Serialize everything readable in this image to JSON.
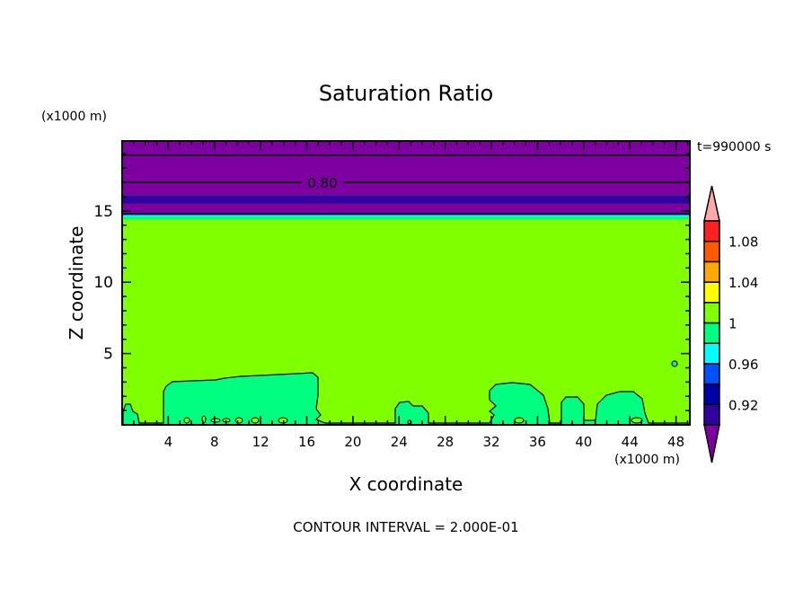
{
  "chart_data": {
    "type": "heatmap",
    "subtype": "filled-contour",
    "title": "Saturation Ratio",
    "xlabel": "X coordinate",
    "ylabel": "Z coordinate",
    "x_unit": "(x1000 m)",
    "y_unit": "(x1000 m)",
    "xlim": [
      0,
      49.2
    ],
    "ylim": [
      0,
      19.9
    ],
    "x_ticks": [
      4,
      8,
      12,
      16,
      20,
      24,
      28,
      32,
      36,
      40,
      44,
      48
    ],
    "y_ticks": [
      5,
      10,
      15
    ],
    "time_label": "t=990000 s",
    "contour_label": "0.80",
    "footer": "CONTOUR INTERVAL = 2.000E-01",
    "colorbar": {
      "levels": [
        0.9,
        0.92,
        0.94,
        0.96,
        0.98,
        1.0,
        1.02,
        1.04,
        1.06,
        1.08,
        1.1
      ],
      "tick_labels": [
        "1.08",
        "1.04",
        "1",
        "0.96",
        "0.92"
      ],
      "tick_values": [
        1.08,
        1.04,
        1.0,
        0.96,
        0.92
      ],
      "colors": [
        "#3000a0",
        "#0000a8",
        "#0050ff",
        "#00ffff",
        "#00ff80",
        "#80ff00",
        "#ffff00",
        "#ffa800",
        "#ff5a00",
        "#ff2020"
      ],
      "under_color": "#7f00a0",
      "over_color": "#ffaaaa"
    },
    "bands": [
      {
        "z0": 14.4,
        "z1": 14.6,
        "color": "#00ff80"
      },
      {
        "z0": 14.6,
        "z1": 14.7,
        "color": "#00ffff"
      },
      {
        "z0": 14.7,
        "z1": 14.8,
        "color": "#0050ff"
      },
      {
        "z0": 14.8,
        "z1": 15.5,
        "color": "#7f00a0"
      },
      {
        "z0": 15.5,
        "z1": 16.1,
        "color": "#3000a0"
      },
      {
        "z0": 16.1,
        "z1": 19.9,
        "color": "#7f00a0"
      }
    ],
    "contour_lines_z": [
      14.8,
      17.0,
      18.9
    ],
    "background_color": "#80ff00"
  }
}
